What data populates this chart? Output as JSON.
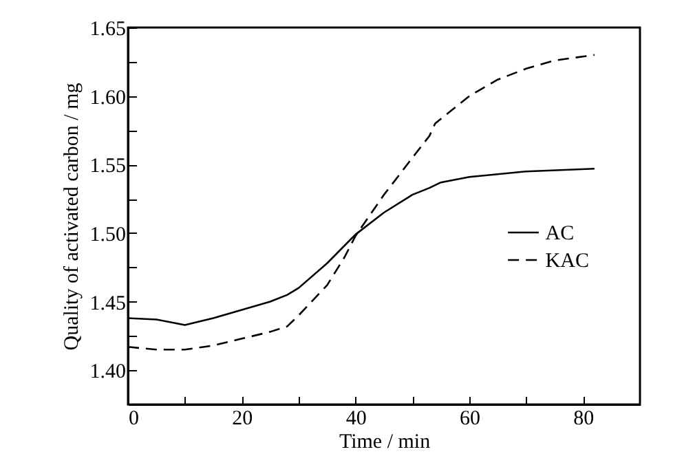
{
  "chart_data": {
    "type": "line",
    "xlabel": "Time / min",
    "ylabel": "Quality of activated carbon / mg",
    "xlim": [
      0,
      90
    ],
    "xticks": [
      0,
      {
        "value": 10,
        "label": null
      },
      20,
      {
        "value": 30,
        "label": null
      },
      40,
      {
        "value": 50,
        "label": null
      },
      60,
      {
        "value": 70,
        "label": null
      },
      80
    ],
    "ylim": [
      1.375,
      1.65
    ],
    "yticks": [
      {
        "value": 1.4,
        "label": "1.40"
      },
      {
        "value": 1.425,
        "label": null
      },
      1.45,
      {
        "value": 1.475,
        "label": null
      },
      {
        "value": 1.5,
        "label": "1.50"
      },
      {
        "value": 1.525,
        "label": null
      },
      1.55,
      {
        "value": 1.575,
        "label": null
      },
      {
        "value": 1.6,
        "label": "1.60"
      },
      {
        "value": 1.625,
        "label": null
      },
      1.65
    ],
    "legend": "right",
    "grid": false,
    "marker": "none",
    "series": [
      {
        "name": "AC",
        "color": "#000000",
        "line_style": "solid",
        "x": [
          0,
          5,
          10,
          15,
          20,
          25,
          28,
          30,
          35,
          40,
          45,
          50,
          53,
          55,
          60,
          65,
          70,
          82
        ],
        "values": [
          1.438,
          1.437,
          1.433,
          1.438,
          1.444,
          1.45,
          1.455,
          1.46,
          1.478,
          1.499,
          1.515,
          1.528,
          1.533,
          1.537,
          1.541,
          1.543,
          1.545,
          1.547
        ]
      },
      {
        "name": "KAC",
        "color": "#000000",
        "line_style": "dashed",
        "x": [
          0,
          5,
          10,
          15,
          20,
          25,
          28,
          30,
          35,
          38,
          40,
          45,
          50,
          53,
          54,
          60,
          65,
          70,
          75,
          82
        ],
        "values": [
          1.417,
          1.415,
          1.415,
          1.418,
          1.423,
          1.428,
          1.432,
          1.44,
          1.462,
          1.482,
          1.498,
          1.528,
          1.555,
          1.571,
          1.58,
          1.6,
          1.612,
          1.62,
          1.626,
          1.63
        ]
      }
    ]
  }
}
